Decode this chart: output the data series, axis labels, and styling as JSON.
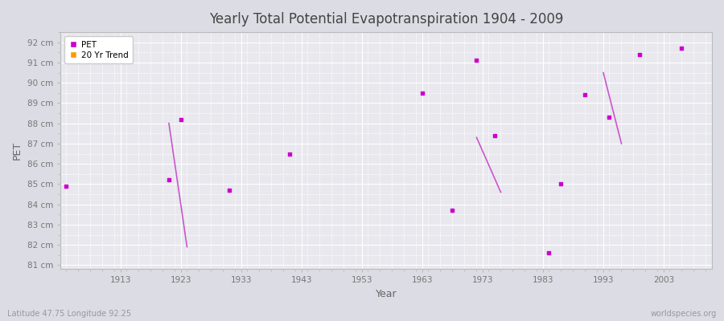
{
  "title": "Yearly Total Potential Evapotranspiration 1904 - 2009",
  "xlabel": "Year",
  "ylabel": "PET",
  "subtitle_left": "Latitude 47.75 Longitude 92.25",
  "subtitle_right": "worldspecies.org",
  "ylim": [
    80.8,
    92.5
  ],
  "xlim": [
    1903,
    2011
  ],
  "yticks": [
    81,
    82,
    83,
    84,
    85,
    86,
    87,
    88,
    89,
    90,
    91,
    92
  ],
  "xticks": [
    1913,
    1923,
    1933,
    1943,
    1953,
    1963,
    1973,
    1983,
    1993,
    2003
  ],
  "pet_points": [
    [
      1904,
      84.9
    ],
    [
      1921,
      85.2
    ],
    [
      1923,
      88.2
    ],
    [
      1931,
      84.7
    ],
    [
      1941,
      86.5
    ],
    [
      1963,
      89.5
    ],
    [
      1968,
      83.7
    ],
    [
      1972,
      91.1
    ],
    [
      1975,
      87.4
    ],
    [
      1984,
      81.6
    ],
    [
      1986,
      85.0
    ],
    [
      1990,
      89.4
    ],
    [
      1994,
      88.3
    ],
    [
      1999,
      91.4
    ],
    [
      2006,
      91.7
    ]
  ],
  "trend_segments": [
    [
      [
        1921,
        88.0
      ],
      [
        1924,
        81.9
      ]
    ],
    [
      [
        1972,
        87.3
      ],
      [
        1976,
        84.6
      ]
    ],
    [
      [
        1993,
        90.5
      ],
      [
        1996,
        87.0
      ]
    ]
  ],
  "pet_color": "#cc00cc",
  "trend_color": "#cc55cc",
  "fig_bg_color": "#dcdce4",
  "plot_bg_color": "#e8e8ee",
  "grid_major_color": "#ffffff",
  "grid_minor_color": "#ffffff",
  "axis_label_color": "#666666",
  "tick_label_color": "#777777",
  "title_color": "#444444",
  "spine_color": "#bbbbbb"
}
